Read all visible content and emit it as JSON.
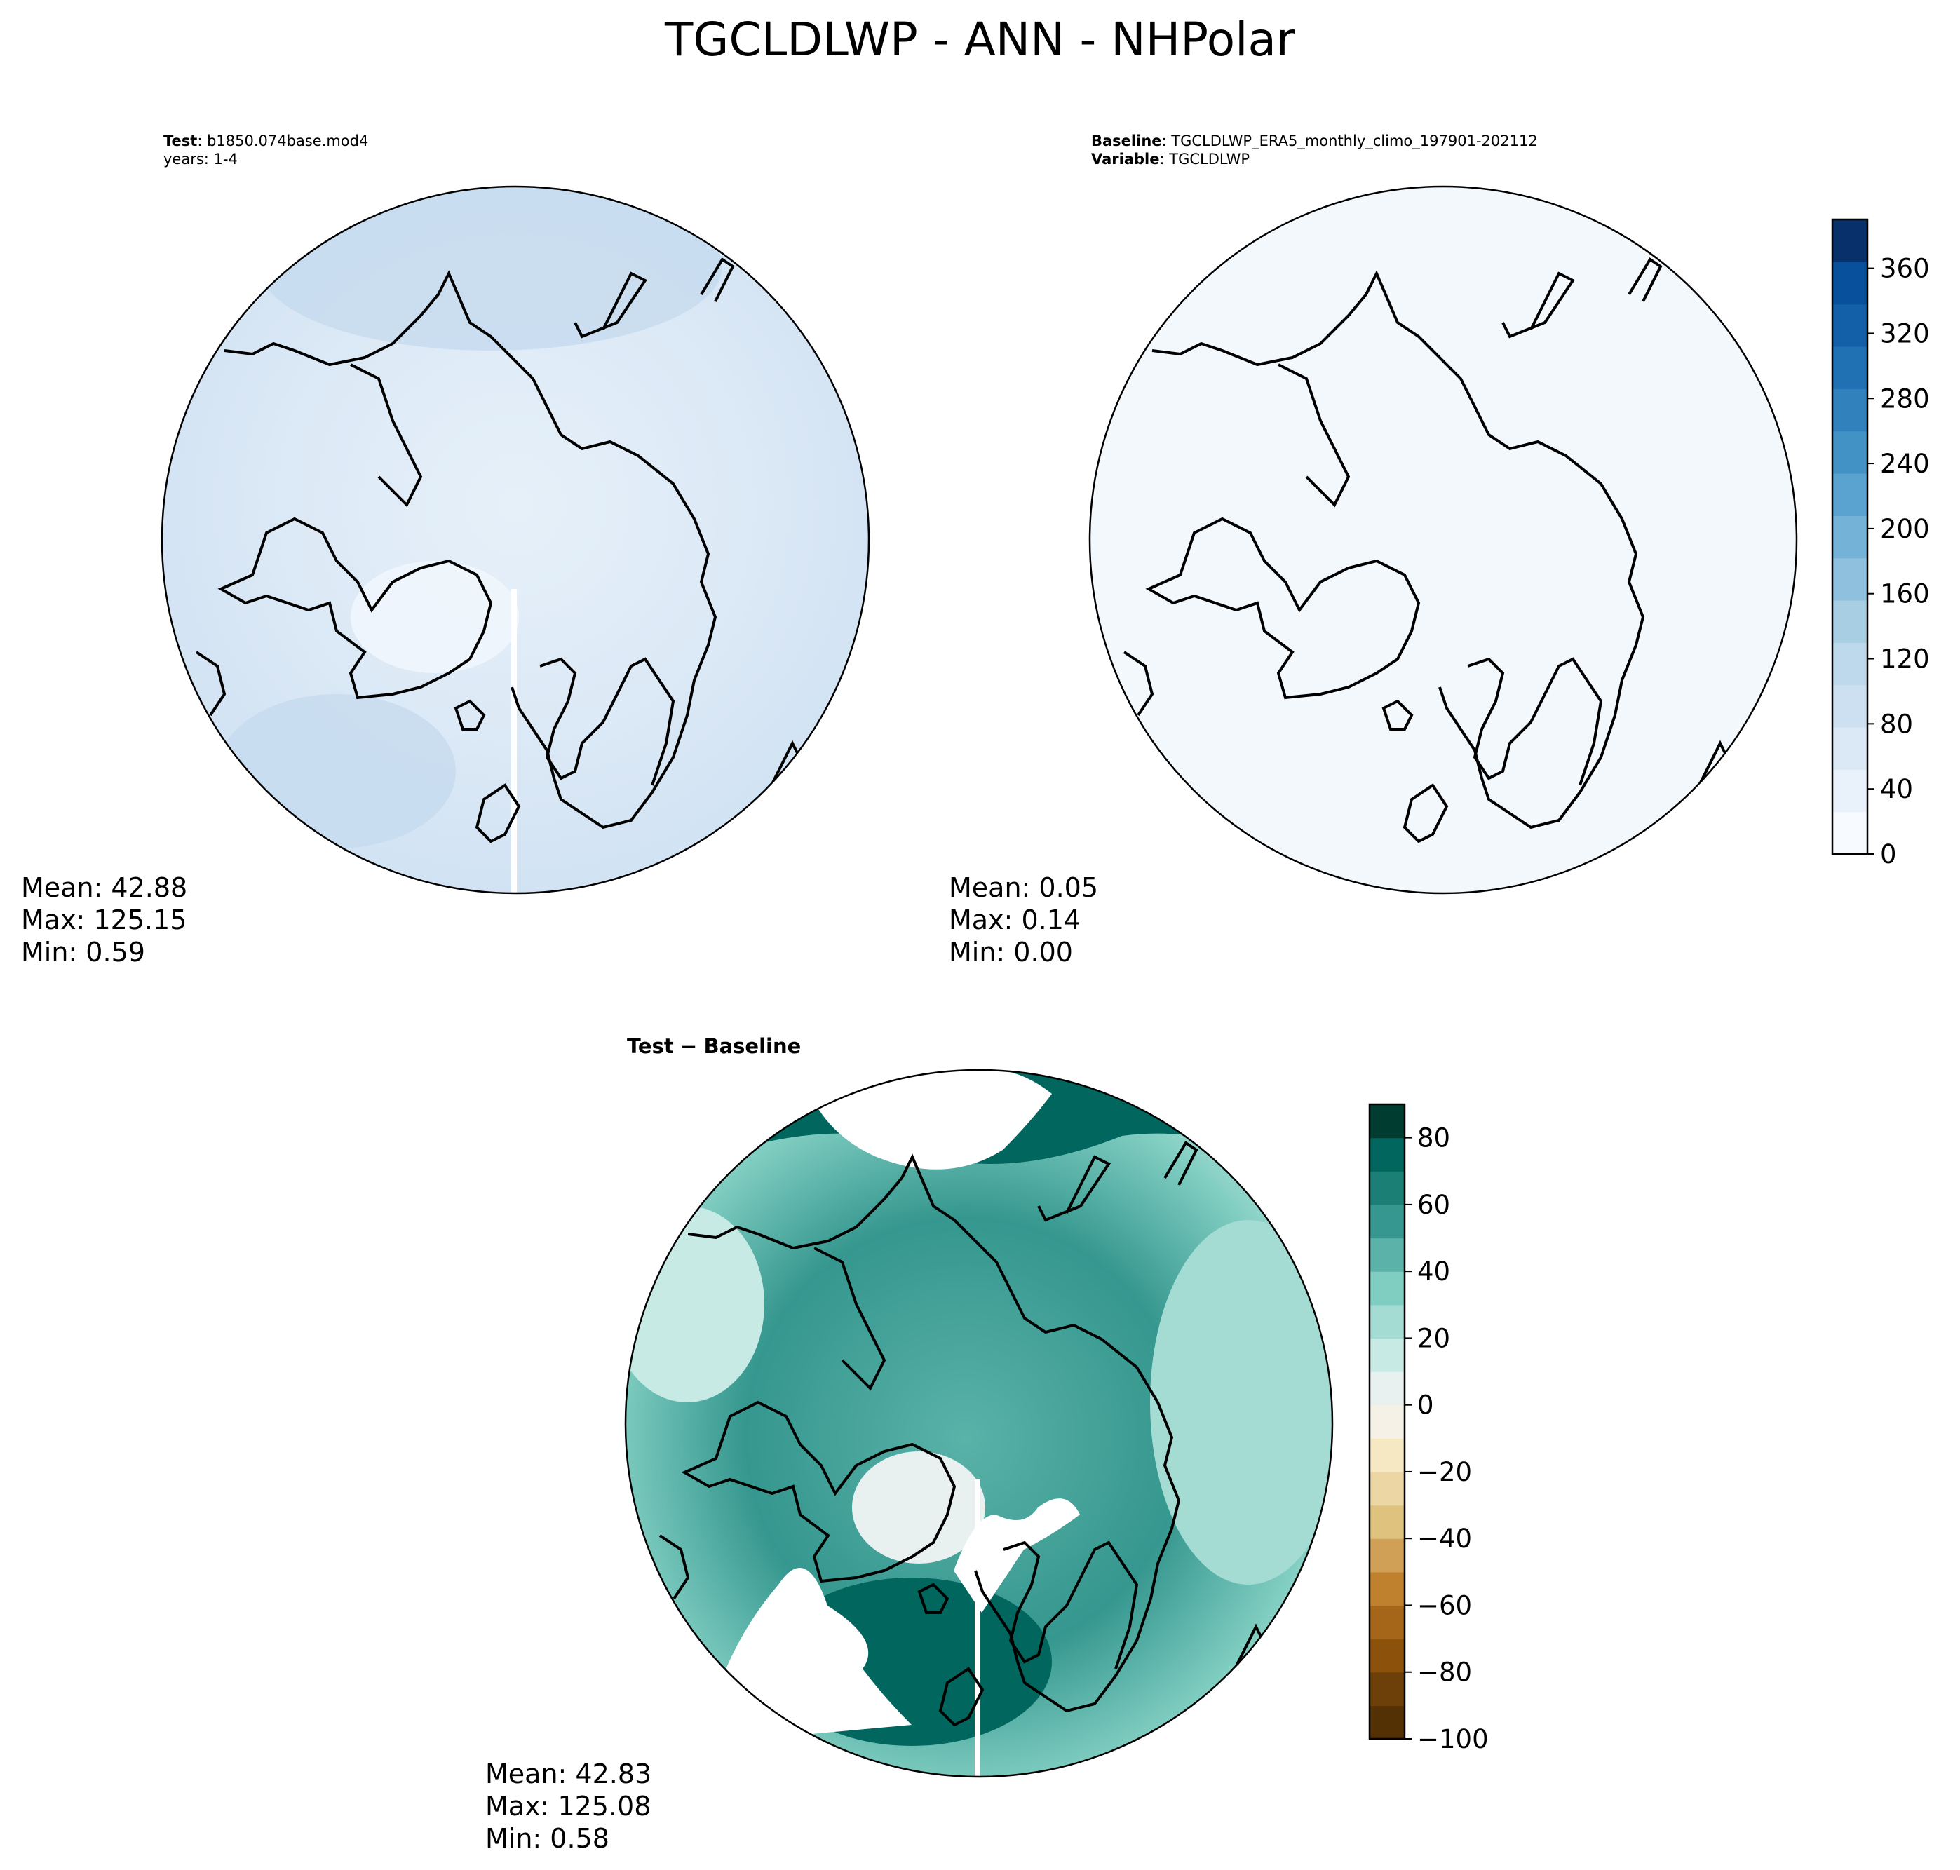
{
  "title": "TGCLDLWP - ANN - NHPolar",
  "panels": [
    {
      "id": "test",
      "line1_label": "Test",
      "line1_text": ": b1850.074base.mod4",
      "line2_text": "years: 1-4",
      "stats": {
        "mean": "Mean: 42.88",
        "max": "Max: 125.15",
        "min": "Min:  0.59"
      },
      "fill_level": 42.88
    },
    {
      "id": "baseline",
      "line1_label": "Baseline",
      "line1_text": ": TGCLDLWP_ERA5_monthly_climo_197901-202112",
      "line2_label": "Variable",
      "line2_text": ": TGCLDLWP",
      "stats": {
        "mean": "Mean:  0.05",
        "max": "Max:  0.14",
        "min": "Min:  0.00"
      },
      "fill_level": 0.05
    },
    {
      "id": "difference",
      "title_left": "Test",
      "title_sep": " − ",
      "title_right": "Baseline",
      "stats": {
        "mean": "Mean: 42.83",
        "max": "Max: 125.08",
        "min": "Min:  0.58"
      },
      "fill_level": 42.83
    }
  ],
  "chart_data": [
    {
      "type": "heatmap",
      "name_ref": "test",
      "projection": "north polar stereographic",
      "colormap": "Blues",
      "colorbar": {
        "min": 0,
        "max": 390,
        "ticks": [
          0,
          40,
          80,
          120,
          160,
          200,
          240,
          280,
          320,
          360
        ],
        "tick_labels": [
          "0",
          "40",
          "80",
          "120",
          "160",
          "200",
          "240",
          "280",
          "320",
          "360"
        ],
        "colors": [
          "#f7fbff",
          "#e9f2fa",
          "#dbe9f6",
          "#cde0f1",
          "#bed8ec",
          "#a8cee4",
          "#8fc1de",
          "#74b2d8",
          "#5aa2cf",
          "#4392c6",
          "#3181bd",
          "#2070b4",
          "#1360a8",
          "#08509b",
          "#08306b"
        ]
      },
      "mean": 42.88,
      "max": 125.15,
      "min": 0.59
    },
    {
      "type": "heatmap",
      "name_ref": "baseline",
      "projection": "north polar stereographic",
      "colormap": "Blues",
      "mean": 0.05,
      "max": 0.14,
      "min": 0.0
    },
    {
      "type": "heatmap",
      "name_ref": "difference",
      "projection": "north polar stereographic",
      "colormap": "BrBG",
      "colorbar": {
        "min": -100,
        "max": 90,
        "ticks": [
          -100,
          -80,
          -60,
          -40,
          -20,
          0,
          20,
          40,
          60,
          80
        ],
        "tick_labels": [
          "−100",
          "−80",
          "−60",
          "−40",
          "−20",
          "0",
          "20",
          "40",
          "60",
          "80"
        ],
        "colors": [
          "#543005",
          "#6e4009",
          "#8c510a",
          "#a6661a",
          "#bf812d",
          "#cfa056",
          "#dfc27d",
          "#ebd6a4",
          "#f6e8c3",
          "#f5f1e6",
          "#e8f1f0",
          "#c7eae5",
          "#a4dbd3",
          "#80cdc1",
          "#5ab2a8",
          "#35978f",
          "#1b7f76",
          "#01665e",
          "#003c30"
        ]
      },
      "mean": 42.83,
      "max": 125.08,
      "min": 0.58
    }
  ],
  "colors": {
    "text": "#000000",
    "outline": "#000000",
    "white_gap": "#ffffff"
  }
}
